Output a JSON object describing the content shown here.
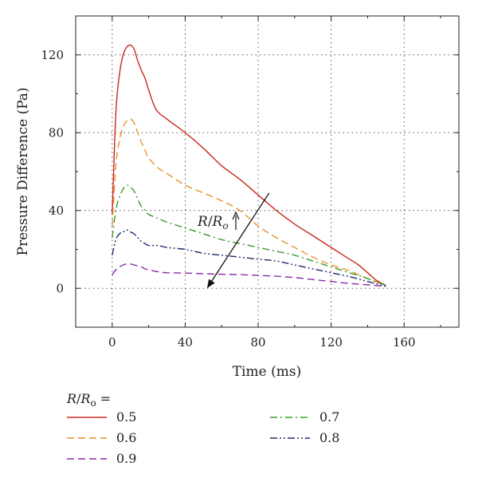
{
  "chart_data": {
    "type": "line",
    "xlabel": "Time (ms)",
    "ylabel": "Pressure Difference (Pa)",
    "xlim": [
      -20,
      190
    ],
    "ylim": [
      -20,
      140
    ],
    "xticks": [
      0,
      40,
      80,
      120,
      160
    ],
    "yticks": [
      0,
      40,
      80,
      120
    ],
    "grid": "dotted",
    "legend": {
      "title": "R/Rₒ =",
      "title_parts": [
        "R",
        "/",
        "R",
        "o",
        " ="
      ],
      "placement": "below",
      "columns": 2
    },
    "annotation": {
      "text_parts": [
        "R",
        "/",
        "R",
        "o"
      ],
      "arrow_from": [
        86,
        49
      ],
      "arrow_to": [
        52,
        0
      ]
    },
    "series": [
      {
        "name": "0.5",
        "color": "#c8281e",
        "dash": "solid",
        "x": [
          0,
          2,
          4,
          6,
          8,
          10,
          12,
          14,
          16,
          18,
          20,
          24,
          30,
          40,
          50,
          60,
          70,
          80,
          90,
          100,
          110,
          120,
          125,
          130,
          135,
          140,
          145,
          150
        ],
        "y": [
          38,
          90,
          110,
          120,
          124,
          125,
          123,
          117,
          112,
          108,
          102,
          92,
          87,
          80,
          72,
          63,
          56,
          48,
          40,
          33,
          27,
          21,
          18,
          15,
          12,
          8,
          4,
          1.5
        ]
      },
      {
        "name": "0.6",
        "color": "#e8902a",
        "dash": "dashed",
        "x": [
          0,
          2,
          4,
          6,
          8,
          10,
          12,
          14,
          16,
          18,
          20,
          25,
          30,
          40,
          50,
          60,
          70,
          80,
          90,
          100,
          110,
          120,
          130,
          140,
          150
        ],
        "y": [
          32,
          63,
          76,
          83,
          86,
          87,
          85,
          80,
          75,
          71,
          67,
          62,
          59,
          53,
          49,
          45,
          40,
          32,
          26,
          21,
          16,
          12,
          9,
          5,
          1.5
        ]
      },
      {
        "name": "0.7",
        "color": "#3a9a2a",
        "dash": "dashdot",
        "x": [
          0,
          2,
          4,
          6,
          8,
          10,
          12,
          14,
          16,
          18,
          20,
          25,
          30,
          40,
          50,
          60,
          70,
          80,
          90,
          100,
          110,
          120,
          130,
          140,
          150
        ],
        "y": [
          26,
          40,
          47,
          51,
          53,
          52,
          50,
          46,
          42,
          40,
          38,
          36,
          34,
          31,
          28,
          25,
          23,
          21,
          19,
          17,
          14,
          11,
          8,
          5,
          1.5
        ]
      },
      {
        "name": "0.8",
        "color": "#1e2a6e",
        "dash": "dashdotdot",
        "x": [
          0,
          2,
          4,
          6,
          8,
          10,
          12,
          14,
          16,
          18,
          20,
          25,
          30,
          40,
          50,
          60,
          70,
          80,
          90,
          100,
          110,
          120,
          130,
          140,
          150
        ],
        "y": [
          17,
          25,
          28,
          29,
          30,
          29,
          28,
          26,
          24,
          23,
          22,
          22,
          21,
          20,
          18,
          17,
          16,
          15,
          14,
          12,
          10,
          8,
          6,
          3.5,
          1
        ]
      },
      {
        "name": "0.9",
        "color": "#8a2aa8",
        "dash": "dashed",
        "x": [
          0,
          2,
          4,
          6,
          8,
          10,
          12,
          14,
          16,
          18,
          20,
          25,
          30,
          40,
          50,
          60,
          70,
          80,
          90,
          100,
          110,
          120,
          130,
          140,
          150
        ],
        "y": [
          7,
          9.5,
          11,
          12,
          12.5,
          12.5,
          12,
          11.5,
          11,
          10,
          9.5,
          8.5,
          8,
          7.8,
          7.5,
          7.2,
          7,
          6.6,
          6.2,
          5.5,
          4.5,
          3.5,
          2.5,
          1.8,
          1
        ]
      }
    ]
  }
}
